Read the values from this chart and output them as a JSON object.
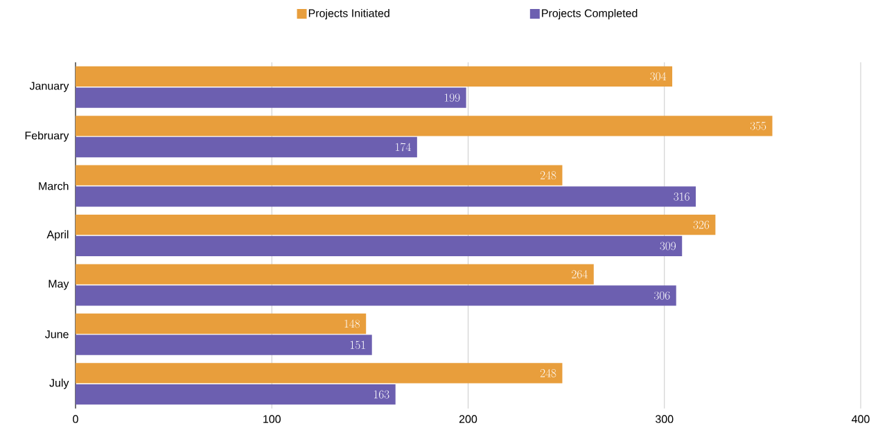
{
  "chart_data": {
    "type": "bar",
    "orientation": "horizontal",
    "categories": [
      "January",
      "February",
      "March",
      "April",
      "May",
      "June",
      "July"
    ],
    "series": [
      {
        "name": "Projects Initiated",
        "color": "#e89e3c",
        "values": [
          304,
          355,
          248,
          326,
          264,
          148,
          248
        ]
      },
      {
        "name": "Projects Completed",
        "color": "#6c5fb0",
        "values": [
          199,
          174,
          316,
          309,
          306,
          151,
          163
        ]
      }
    ],
    "xlim": [
      0,
      400
    ],
    "xticks": [
      0,
      100,
      200,
      300,
      400
    ],
    "grid": "x",
    "legend": "top",
    "data_labels": true
  }
}
